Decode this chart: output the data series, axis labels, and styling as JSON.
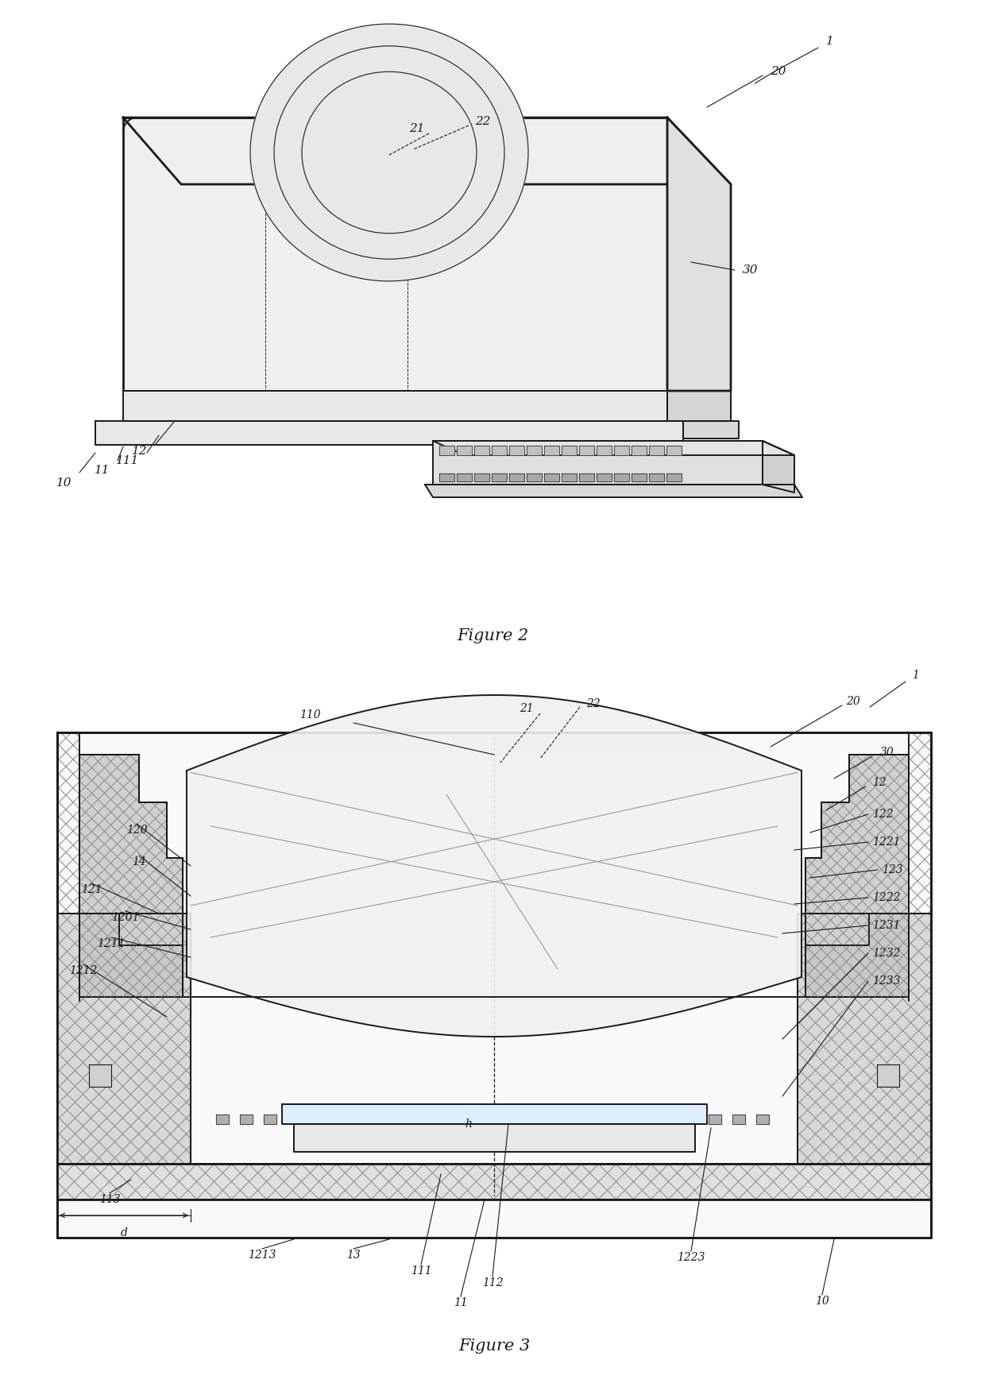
{
  "fig2_title": "Figure 2",
  "fig3_title": "Figure 3",
  "bg": "#ffffff",
  "blk": "#1a1a1a",
  "lt_gray": "#f0f0f0",
  "md_gray": "#d8d8d8",
  "dk_gray": "#b0b0b0",
  "hatch": "#888888"
}
